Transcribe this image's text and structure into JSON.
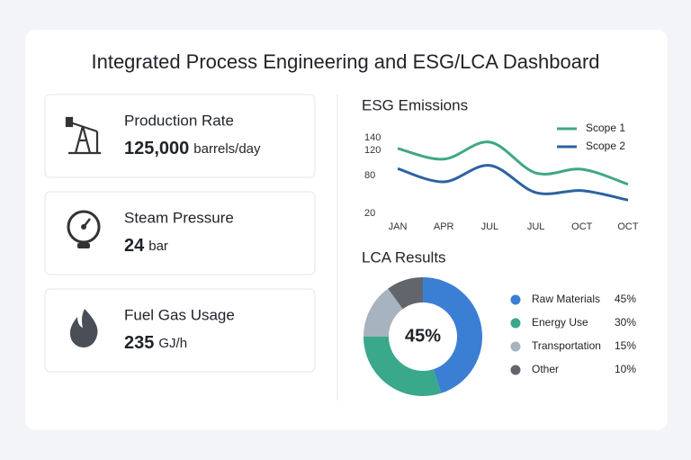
{
  "header": {
    "title": "Integrated Process Engineering and ESG/LCA Dashboard"
  },
  "kpis": [
    {
      "label": "Production Rate",
      "value": "125,000",
      "unit": "barrels/day"
    },
    {
      "label": "Steam Pressure",
      "value": "24",
      "unit": "bar"
    },
    {
      "label": "Fuel Gas Usage",
      "value": "235",
      "unit": "GJ/h"
    }
  ],
  "chart_data": [
    {
      "type": "line",
      "title": "ESG Emissions",
      "categories": [
        "JAN",
        "APR",
        "JUL",
        "JUL",
        "OCT",
        "OCT"
      ],
      "series": [
        {
          "name": "Scope 1",
          "color": "#3fa882",
          "values": [
            123,
            106,
            133,
            84,
            90,
            66
          ]
        },
        {
          "name": "Scope 2",
          "color": "#2d62a0",
          "values": [
            91,
            70,
            96,
            53,
            56,
            41
          ]
        }
      ],
      "ylim": [
        20,
        140
      ],
      "yticks": [
        140,
        120,
        80,
        20
      ],
      "legend": "top-right"
    },
    {
      "type": "donut",
      "title": "LCA Results",
      "center_label": "45%",
      "categories": [
        "Raw Materials",
        "Energy Use",
        "Transportation",
        "Other"
      ],
      "values": [
        45,
        30,
        15,
        10
      ],
      "value_labels": [
        "45%",
        "30%",
        "15%",
        "10%"
      ],
      "colors": [
        "#3b7fd4",
        "#3aa88a",
        "#a8b3c0",
        "#62666c"
      ]
    }
  ]
}
